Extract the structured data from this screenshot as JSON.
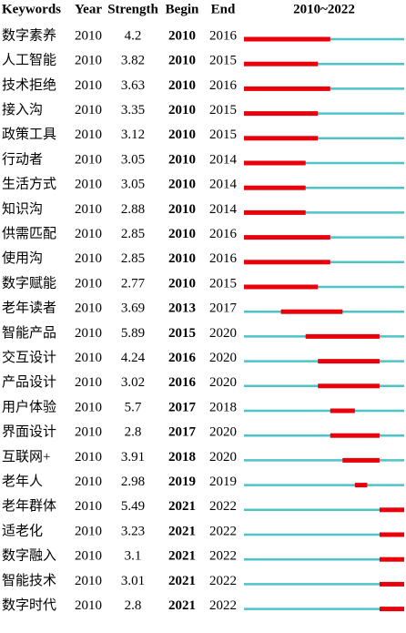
{
  "table": {
    "header": [
      "Keywords",
      "Year",
      "Strength",
      "Begin",
      "End",
      "2010~2022"
    ],
    "rows": [
      [
        "数字素养",
        2010,
        4.2,
        2010,
        2016
      ],
      [
        "人工智能",
        2010,
        3.82,
        2010,
        2015
      ],
      [
        "技术拒绝",
        2010,
        3.63,
        2010,
        2016
      ],
      [
        "接入沟",
        2010,
        3.35,
        2010,
        2015
      ],
      [
        "政策工具",
        2010,
        3.12,
        2010,
        2015
      ],
      [
        "行动者",
        2010,
        3.05,
        2010,
        2014
      ],
      [
        "生活方式",
        2010,
        3.05,
        2010,
        2014
      ],
      [
        "知识沟",
        2010,
        2.88,
        2010,
        2014
      ],
      [
        "供需匹配",
        2010,
        2.85,
        2010,
        2016
      ],
      [
        "使用沟",
        2010,
        2.85,
        2010,
        2016
      ],
      [
        "数字赋能",
        2010,
        2.77,
        2010,
        2015
      ],
      [
        "老年读者",
        2010,
        3.69,
        2013,
        2017
      ],
      [
        "智能产品",
        2010,
        5.89,
        2015,
        2020
      ],
      [
        "交互设计",
        2010,
        4.24,
        2016,
        2020
      ],
      [
        "产品设计",
        2010,
        3.02,
        2016,
        2020
      ],
      [
        "用户体验",
        2010,
        5.7,
        2017,
        2018
      ],
      [
        "界面设计",
        2010,
        2.8,
        2017,
        2020
      ],
      [
        "互联网+",
        2010,
        3.91,
        2018,
        2020
      ],
      [
        "老年人",
        2010,
        2.98,
        2019,
        2019
      ],
      [
        "老年群体",
        2010,
        5.49,
        2021,
        2022
      ],
      [
        "适老化",
        2010,
        3.23,
        2021,
        2022
      ],
      [
        "数字融入",
        2010,
        3.1,
        2021,
        2022
      ],
      [
        "智能技术",
        2010,
        3.01,
        2021,
        2022
      ],
      [
        "数字时代",
        2010,
        2.8,
        2021,
        2022
      ]
    ]
  }
}
